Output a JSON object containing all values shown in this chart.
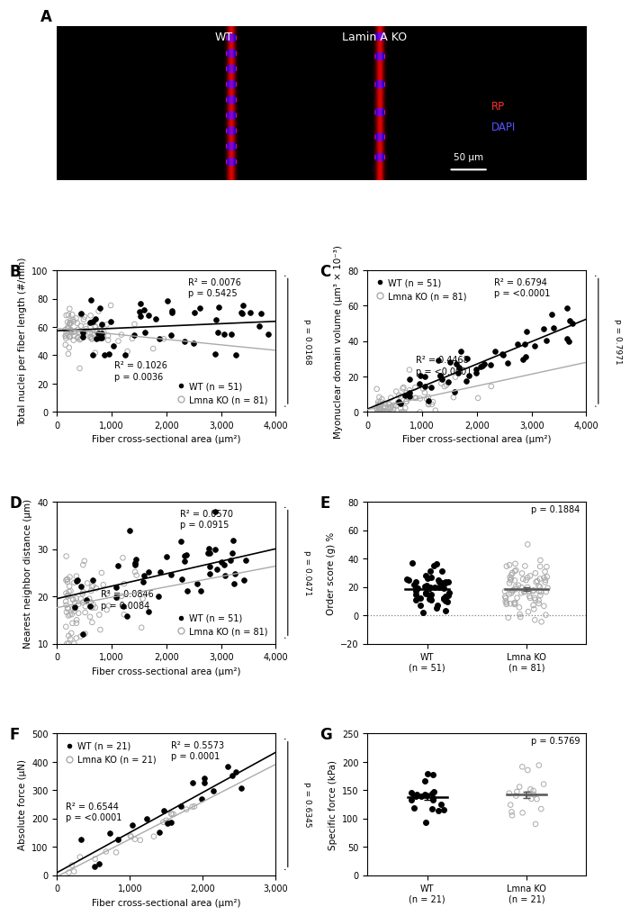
{
  "panel_A": {
    "wt_label": "WT",
    "ko_label": "Lamin A KO",
    "rp_label": "RP",
    "dapi_label": "DAPI",
    "scale_label": "50 μm"
  },
  "panel_B": {
    "xlabel": "Fiber cross-sectional area (μm²)",
    "ylabel": "Total nuclei per fiber length (#/mm)",
    "wt_label": "WT (n = 51)",
    "ko_label": "Lmna KO (n = 81)",
    "ylim": [
      0,
      100
    ],
    "xlim": [
      0,
      4000
    ],
    "xticks": [
      0,
      1000,
      2000,
      3000,
      4000
    ],
    "yticks": [
      0,
      20,
      40,
      60,
      80,
      100
    ],
    "wt_r2": "R² = 0.0076",
    "wt_p": "p = 0.5425",
    "ko_r2": "R² = 0.1026",
    "ko_p": "p = 0.0036",
    "bracket_p": "p = 0.0168"
  },
  "panel_C": {
    "xlabel": "Fiber cross-sectional area (μm²)",
    "ylabel": "Myonuclear domain volume (μm³ × 10⁻³)",
    "wt_label": "WT (n = 51)",
    "ko_label": "Lmna KO (n = 81)",
    "ylim": [
      0,
      80
    ],
    "xlim": [
      0,
      4000
    ],
    "xticks": [
      0,
      1000,
      2000,
      3000,
      4000
    ],
    "yticks": [
      0,
      20,
      40,
      60,
      80
    ],
    "wt_r2": "R² = 0.6794",
    "wt_p": "p = <0.0001",
    "ko_r2": "R² = 0.4468",
    "ko_p": "p = <0.0001",
    "bracket_p": "p = 0.7971"
  },
  "panel_D": {
    "xlabel": "Fiber cross-sectional area (μm²)",
    "ylabel": "Nearest neighbor distance (μm)",
    "wt_label": "WT (n = 51)",
    "ko_label": "Lmna KO (n = 81)",
    "ylim": [
      10,
      40
    ],
    "xlim": [
      0,
      4000
    ],
    "xticks": [
      0,
      1000,
      2000,
      3000,
      4000
    ],
    "yticks": [
      10,
      20,
      30,
      40
    ],
    "wt_r2": "R² = 0.0570",
    "wt_p": "p = 0.0915",
    "ko_r2": "R² = 0.0846",
    "ko_p": "p = 0.0084",
    "bracket_p": "p = 0.0471"
  },
  "panel_E": {
    "ylabel": "Order score (g) %",
    "wt_xlabel": "WT\n(n = 51)",
    "ko_xlabel": "Lmna KO\n(n = 81)",
    "ylim": [
      -20,
      80
    ],
    "yticks": [
      -20,
      0,
      20,
      40,
      60,
      80
    ],
    "p_value": "p = 0.1884"
  },
  "panel_F": {
    "xlabel": "Fiber cross-sectional area (μm²)",
    "ylabel": "Absolute force (μN)",
    "wt_label": "WT (n = 21)",
    "ko_label": "Lmna KO (n = 21)",
    "ylim": [
      0,
      500
    ],
    "xlim": [
      0,
      3000
    ],
    "xticks": [
      0,
      1000,
      2000,
      3000
    ],
    "yticks": [
      0,
      100,
      200,
      300,
      400,
      500
    ],
    "wt_r2": "R² = 0.5573",
    "wt_p": "p = 0.0001",
    "ko_r2": "R² = 0.6544",
    "ko_p": "p = <0.0001",
    "bracket_p": "p = 0.6345"
  },
  "panel_G": {
    "ylabel": "Specific force (kPa)",
    "wt_xlabel": "WT\n(n = 21)",
    "ko_xlabel": "Lmna KO\n(n = 21)",
    "ylim": [
      0,
      250
    ],
    "yticks": [
      0,
      50,
      100,
      150,
      200,
      250
    ],
    "p_value": "p = 0.5769"
  },
  "colors": {
    "wt": "#000000",
    "ko": "#aaaaaa",
    "line_wt": "#000000",
    "line_ko": "#aaaaaa"
  }
}
